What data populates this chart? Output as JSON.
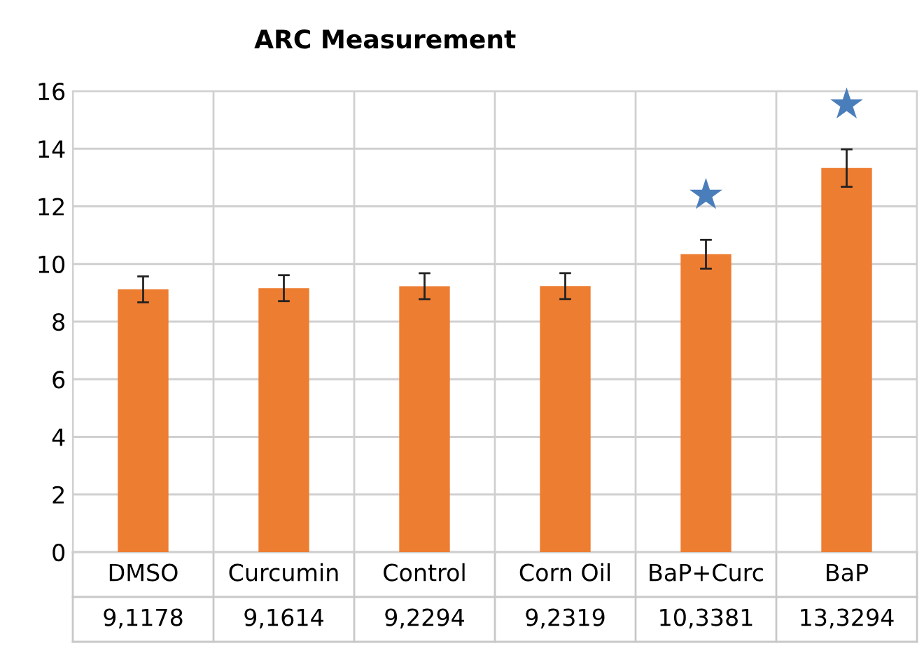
{
  "chart_data": {
    "type": "bar",
    "title": "ARC Measurement",
    "categories": [
      "DMSO",
      "Curcumin",
      "Control",
      "Corn Oil",
      "BaP+Curc",
      "BaP"
    ],
    "values": [
      9.1178,
      9.1614,
      9.2294,
      9.2319,
      10.3381,
      13.3294
    ],
    "value_labels": [
      "9,1178",
      "9,1614",
      "9,2294",
      "9,2319",
      "10,3381",
      "13,3294"
    ],
    "errors": [
      0.45,
      0.45,
      0.45,
      0.45,
      0.5,
      0.65
    ],
    "color": "#ed7d31",
    "ylim": [
      0,
      16
    ],
    "yticks": [
      0,
      2,
      4,
      6,
      8,
      10,
      12,
      14,
      16
    ],
    "grid": "y",
    "annotations": [
      "★",
      "★"
    ]
  }
}
